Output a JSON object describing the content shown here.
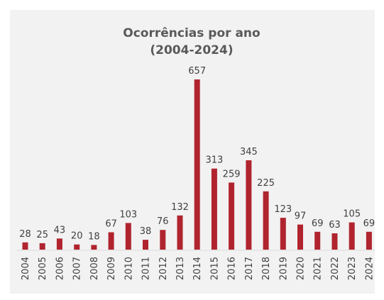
{
  "chart_data": {
    "type": "bar",
    "title": "Ocorrências por ano",
    "subtitle": "(2004-2024)",
    "xlabel": "",
    "ylabel": "",
    "categories": [
      "2004",
      "2005",
      "2006",
      "2007",
      "2008",
      "2009",
      "2010",
      "2011",
      "2012",
      "2013",
      "2014",
      "2015",
      "2016",
      "2017",
      "2018",
      "2019",
      "2020",
      "2021",
      "2022",
      "2023",
      "2024"
    ],
    "values": [
      28,
      25,
      43,
      20,
      18,
      67,
      103,
      38,
      76,
      132,
      657,
      313,
      259,
      345,
      225,
      123,
      97,
      69,
      63,
      105,
      69
    ],
    "ylim": [
      0,
      657
    ],
    "grid": false,
    "legend": "none",
    "bar_color": "#b0242f",
    "panel_color": "#f2f2f2"
  }
}
